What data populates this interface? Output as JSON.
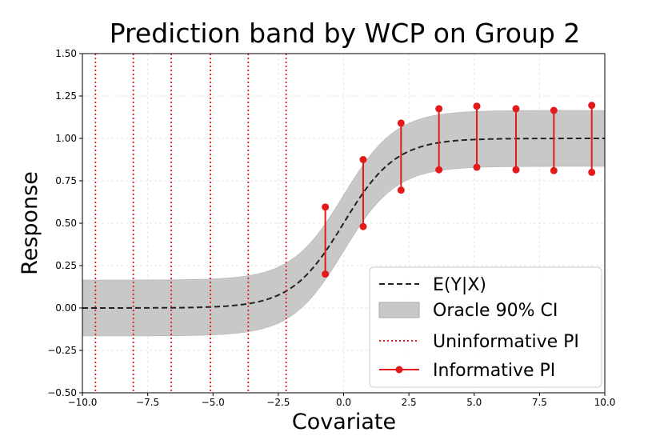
{
  "chart_data": {
    "type": "line",
    "title": "Prediction band by WCP on Group 2",
    "xlabel": "Covariate",
    "ylabel": "Response",
    "xlim": [
      -10,
      10
    ],
    "ylim": [
      -0.5,
      1.5
    ],
    "xticks": [
      -10,
      -7.5,
      -5,
      -2.5,
      0,
      2.5,
      5,
      7.5,
      10
    ],
    "xtick_labels": [
      "−10.0",
      "−7.5",
      "−5.0",
      "−2.5",
      "0.0",
      "2.5",
      "5.0",
      "7.5",
      "10.0"
    ],
    "yticks": [
      -0.5,
      -0.25,
      0,
      0.25,
      0.5,
      0.75,
      1,
      1.25,
      1.5
    ],
    "ytick_labels": [
      "−0.50",
      "−0.25",
      "0.00",
      "0.25",
      "0.50",
      "0.75",
      "1.00",
      "1.25",
      "1.50"
    ],
    "grid": true,
    "legend_position": "bottom-right",
    "series": [
      {
        "name": "E(Y|X)",
        "kind": "dashed-line",
        "color": "#222222"
      },
      {
        "name": "Oracle 90% CI",
        "kind": "band",
        "color": "#c8c8c8",
        "half_width": 0.165
      },
      {
        "name": "Uninformative PI",
        "kind": "vertical-dotted",
        "color": "#e31a1c",
        "x": [
          -9.5,
          -8.05,
          -6.6,
          -5.1,
          -3.65,
          -2.2
        ]
      },
      {
        "name": "Informative PI",
        "kind": "interval",
        "color": "#e31a1c",
        "intervals": [
          {
            "x": -0.7,
            "lower": 0.2,
            "upper": 0.595
          },
          {
            "x": 0.75,
            "lower": 0.48,
            "upper": 0.875
          },
          {
            "x": 2.2,
            "lower": 0.695,
            "upper": 1.09
          },
          {
            "x": 3.65,
            "lower": 0.815,
            "upper": 1.175
          },
          {
            "x": 5.1,
            "lower": 0.83,
            "upper": 1.19
          },
          {
            "x": 6.6,
            "lower": 0.815,
            "upper": 1.175
          },
          {
            "x": 8.05,
            "lower": 0.81,
            "upper": 1.165
          },
          {
            "x": 9.5,
            "lower": 0.8,
            "upper": 1.195
          }
        ]
      }
    ]
  }
}
